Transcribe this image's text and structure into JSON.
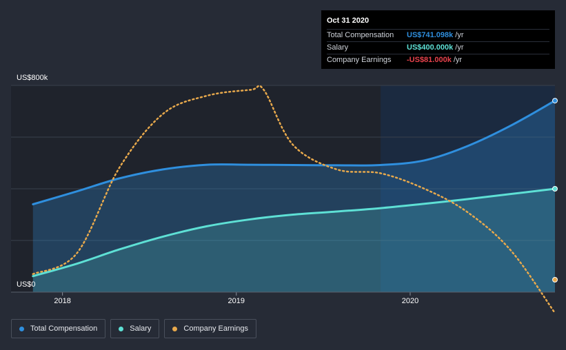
{
  "chart_data": {
    "type": "area",
    "x_ticks": [
      "2018",
      "2019",
      "2020"
    ],
    "y_ticks": [
      "US$0",
      "US$800k"
    ],
    "ylim": [
      0,
      800000
    ],
    "grid": true,
    "legend_position": "bottom-left",
    "series": [
      {
        "name": "Total Compensation",
        "color": "#2f8fde",
        "style": "solid-area",
        "points": [
          [
            "2017-10-31",
            340000
          ],
          [
            "2018-01-31",
            390000
          ],
          [
            "2018-04-30",
            440000
          ],
          [
            "2018-07-31",
            475000
          ],
          [
            "2018-10-31",
            493000
          ],
          [
            "2019-01-31",
            493000
          ],
          [
            "2019-04-30",
            492000
          ],
          [
            "2019-07-31",
            491000
          ],
          [
            "2019-10-31",
            492000
          ],
          [
            "2020-01-31",
            510000
          ],
          [
            "2020-04-30",
            565000
          ],
          [
            "2020-07-31",
            645000
          ],
          [
            "2020-10-31",
            741098
          ]
        ]
      },
      {
        "name": "Salary",
        "color": "#5ee0d5",
        "style": "solid-area",
        "points": [
          [
            "2017-10-31",
            62000
          ],
          [
            "2018-01-31",
            110000
          ],
          [
            "2018-04-30",
            165000
          ],
          [
            "2018-07-31",
            215000
          ],
          [
            "2018-10-31",
            255000
          ],
          [
            "2019-01-31",
            282000
          ],
          [
            "2019-04-30",
            300000
          ],
          [
            "2019-07-31",
            312000
          ],
          [
            "2019-10-31",
            325000
          ],
          [
            "2020-01-31",
            342000
          ],
          [
            "2020-04-30",
            360000
          ],
          [
            "2020-07-31",
            380000
          ],
          [
            "2020-10-31",
            400000
          ]
        ]
      },
      {
        "name": "Company Earnings",
        "color": "#e8a94c",
        "style": "dotted",
        "points": [
          [
            "2017-10-31",
            70000
          ],
          [
            "2018-01-31",
            150000
          ],
          [
            "2018-04-30",
            480000
          ],
          [
            "2018-07-31",
            690000
          ],
          [
            "2018-10-31",
            760000
          ],
          [
            "2019-01-31",
            783000
          ],
          [
            "2019-02-28",
            782000
          ],
          [
            "2019-04-30",
            570000
          ],
          [
            "2019-07-31",
            475000
          ],
          [
            "2019-10-31",
            460000
          ],
          [
            "2020-01-31",
            400000
          ],
          [
            "2020-04-30",
            310000
          ],
          [
            "2020-07-31",
            160000
          ],
          [
            "2020-10-31",
            -81000
          ]
        ]
      }
    ],
    "highlight_date": "Oct 31 2020"
  },
  "tooltip": {
    "date": "Oct 31 2020",
    "rows": [
      {
        "label": "Total Compensation",
        "value": "US$741.098k",
        "unit": "/yr",
        "color": "#2f8fde"
      },
      {
        "label": "Salary",
        "value": "US$400.000k",
        "unit": "/yr",
        "color": "#5ee0d5"
      },
      {
        "label": "Company Earnings",
        "value": "-US$81.000k",
        "unit": "/yr",
        "color": "#e8424c"
      }
    ]
  },
  "legend": [
    {
      "label": "Total Compensation",
      "color": "#2f8fde"
    },
    {
      "label": "Salary",
      "color": "#5ee0d5"
    },
    {
      "label": "Company Earnings",
      "color": "#e8a94c"
    }
  ]
}
